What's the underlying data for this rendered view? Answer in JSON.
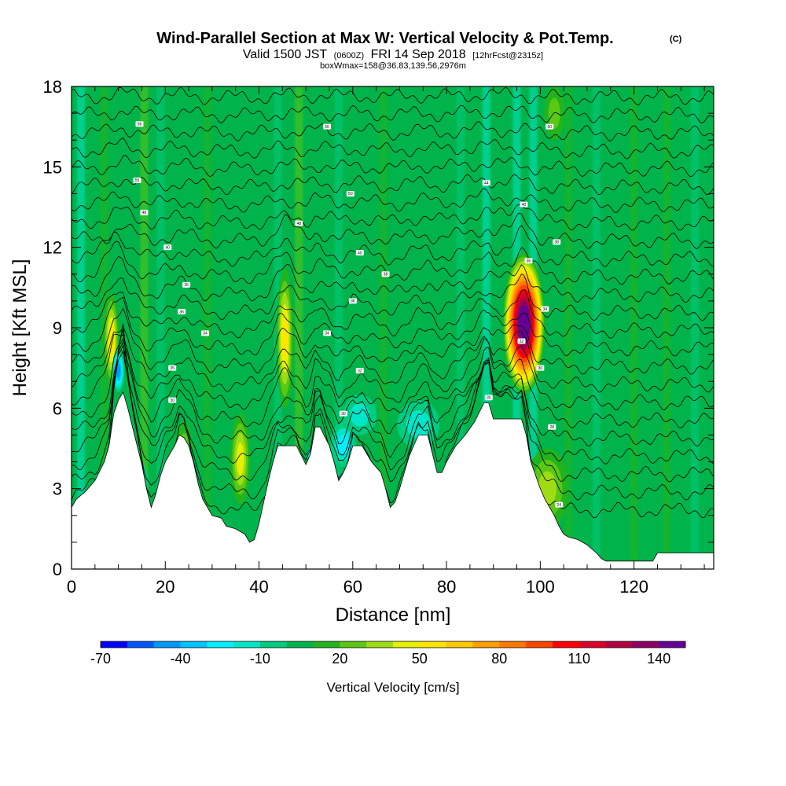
{
  "title": {
    "main": "Wind-Parallel Section at Max W: Vertical Velocity & Pot.Temp.",
    "copyright": "(C)",
    "valid_prefix": "Valid 1500 JST",
    "valid_utc": "(0600Z)",
    "valid_date": "FRI 14 Sep 2018",
    "forecast": "[12hrFcst@2315z]",
    "box_info": "boxWmax=158@36.83,139.56,2976m"
  },
  "chart_data": {
    "type": "heatmap",
    "xlabel": "Distance [nm]",
    "ylabel": "Height [Kft MSL]",
    "xlim": [
      0,
      137
    ],
    "ylim": [
      0,
      18
    ],
    "x_ticks": [
      0,
      20,
      40,
      60,
      80,
      100,
      120
    ],
    "x_tick_labels": [
      "0",
      "20",
      "40",
      "60",
      "80",
      "100",
      "120"
    ],
    "y_ticks": [
      0,
      3,
      6,
      9,
      12,
      15,
      18
    ],
    "y_tick_labels": [
      "0",
      "3",
      "6",
      "9",
      "12",
      "15",
      "18"
    ],
    "background_value": 5,
    "terrain": {
      "x": [
        0,
        1,
        3,
        5,
        7,
        8,
        9,
        10,
        11,
        12,
        13,
        14,
        15,
        16,
        17,
        18,
        19,
        20,
        21,
        22,
        23,
        24,
        25,
        26,
        27,
        28,
        30,
        32,
        33,
        35,
        37,
        38,
        39,
        40,
        41,
        42,
        43,
        44,
        46,
        48,
        50,
        51,
        52,
        53,
        55,
        56,
        57,
        58,
        59,
        60,
        62,
        64,
        66,
        67,
        68,
        69,
        70,
        71,
        72,
        73,
        74,
        76,
        78,
        79,
        80,
        82,
        84,
        86,
        88,
        89,
        90,
        91,
        93,
        96,
        97,
        98,
        100,
        101,
        102,
        103,
        104,
        105,
        106,
        108,
        110,
        112,
        113,
        114,
        116,
        118,
        120,
        122,
        124,
        125,
        128,
        132,
        137
      ],
      "height_kft": [
        2.3,
        2.6,
        2.9,
        3.3,
        4.0,
        4.6,
        5.8,
        6.3,
        6.6,
        6.0,
        5.3,
        4.6,
        3.9,
        3.0,
        2.3,
        2.8,
        3.5,
        4.0,
        4.3,
        4.6,
        5.0,
        4.9,
        4.6,
        4.0,
        3.2,
        2.6,
        2.0,
        1.9,
        1.6,
        1.5,
        1.3,
        1.0,
        1.1,
        1.7,
        2.5,
        3.3,
        4.0,
        4.6,
        4.6,
        4.6,
        3.9,
        4.3,
        5.3,
        5.3,
        4.6,
        4.0,
        3.3,
        3.6,
        4.0,
        4.6,
        4.6,
        4.0,
        3.6,
        3.0,
        2.3,
        2.5,
        3.0,
        3.6,
        4.2,
        4.6,
        5.0,
        5.0,
        3.6,
        3.6,
        4.0,
        4.6,
        5.0,
        5.5,
        6.2,
        6.2,
        5.6,
        5.6,
        5.6,
        5.6,
        5.0,
        4.0,
        3.0,
        2.6,
        2.3,
        2.0,
        1.6,
        1.3,
        1.2,
        1.1,
        0.9,
        0.6,
        0.4,
        0.3,
        0.3,
        0.3,
        0.3,
        0.3,
        0.3,
        0.6,
        0.6,
        0.6,
        0.6
      ]
    },
    "updrafts": [
      {
        "x": 8.5,
        "y_low": 6.8,
        "y_high": 10.3,
        "peak_cm_s": 55,
        "width_nm": 0.9
      },
      {
        "x": 45.5,
        "y_low": 6.0,
        "y_high": 11.2,
        "peak_cm_s": 60,
        "width_nm": 1.0
      },
      {
        "x": 96.5,
        "y_low": 6.5,
        "y_high": 11.8,
        "peak_cm_s": 158,
        "width_nm": 2.5
      },
      {
        "x": 36.0,
        "y_low": 2.4,
        "y_high": 5.8,
        "peak_cm_s": 45,
        "width_nm": 1.2
      },
      {
        "x": 24.0,
        "y_low": 3.5,
        "y_high": 5.5,
        "peak_cm_s": 30,
        "width_nm": 1.0
      },
      {
        "x": 101.5,
        "y_low": 1.5,
        "y_high": 4.5,
        "peak_cm_s": 35,
        "width_nm": 2.5
      },
      {
        "x": 103.0,
        "y_low": 16.0,
        "y_high": 18.0,
        "peak_cm_s": 25,
        "width_nm": 1.2
      }
    ],
    "downdrafts": [
      {
        "x": 10.0,
        "y_low": 6.6,
        "y_high": 8.2,
        "peak_cm_s": -45,
        "width_nm": 0.7
      },
      {
        "x": 51.5,
        "y_low": 3.9,
        "y_high": 4.6,
        "peak_cm_s": -55,
        "width_nm": 0.7
      },
      {
        "x": 58.0,
        "y_low": 3.8,
        "y_high": 5.5,
        "peak_cm_s": -30,
        "width_nm": 1.5
      },
      {
        "x": 74.0,
        "y_low": 4.5,
        "y_high": 6.3,
        "peak_cm_s": -20,
        "width_nm": 2.5
      },
      {
        "x": 61.5,
        "y_low": 5.0,
        "y_high": 6.5,
        "peak_cm_s": -18,
        "width_nm": 2.0
      },
      {
        "x": 14.5,
        "y_low": 2.3,
        "y_high": 4.0,
        "peak_cm_s": -22,
        "width_nm": 1.0
      }
    ],
    "vertical_streaks": [
      {
        "x": 2.0,
        "value": -12
      },
      {
        "x": 7.0,
        "value": 18
      },
      {
        "x": 15.5,
        "value": 22
      },
      {
        "x": 19.0,
        "value": -10
      },
      {
        "x": 29.0,
        "value": 15
      },
      {
        "x": 44.0,
        "value": -10
      },
      {
        "x": 48.5,
        "value": 25
      },
      {
        "x": 57.0,
        "value": -10
      },
      {
        "x": 66.5,
        "value": 15
      },
      {
        "x": 83.0,
        "value": -8
      },
      {
        "x": 88.5,
        "value": -12
      },
      {
        "x": 95.0,
        "value": -15
      },
      {
        "x": 98.5,
        "value": -18
      },
      {
        "x": 106.0,
        "value": 15
      },
      {
        "x": 112.0,
        "value": -8
      },
      {
        "x": 120.0,
        "value": 12
      },
      {
        "x": 127.0,
        "value": 15
      },
      {
        "x": 133.0,
        "value": -8
      }
    ],
    "isentrope_count": 24,
    "isentrope_base_kft": 2.2,
    "isentrope_top_kft": 17.6,
    "isentrope_labels": [
      {
        "x": 14.5,
        "y": 16.6,
        "text": "56"
      },
      {
        "x": 14.0,
        "y": 14.5,
        "text": "55"
      },
      {
        "x": 15.5,
        "y": 13.3,
        "text": "48"
      },
      {
        "x": 20.5,
        "y": 12.0,
        "text": "40"
      },
      {
        "x": 24.5,
        "y": 10.6,
        "text": "35"
      },
      {
        "x": 23.5,
        "y": 9.6,
        "text": "36"
      },
      {
        "x": 28.5,
        "y": 8.8,
        "text": "34"
      },
      {
        "x": 21.5,
        "y": 7.5,
        "text": "35"
      },
      {
        "x": 21.5,
        "y": 6.3,
        "text": "30"
      },
      {
        "x": 54.5,
        "y": 16.5,
        "text": "56"
      },
      {
        "x": 59.5,
        "y": 14.0,
        "text": "50"
      },
      {
        "x": 48.5,
        "y": 12.9,
        "text": "48"
      },
      {
        "x": 61.5,
        "y": 11.8,
        "text": "40"
      },
      {
        "x": 67.0,
        "y": 11.0,
        "text": "38"
      },
      {
        "x": 60.0,
        "y": 10.0,
        "text": "36"
      },
      {
        "x": 54.5,
        "y": 8.8,
        "text": "34"
      },
      {
        "x": 61.5,
        "y": 7.4,
        "text": "32"
      },
      {
        "x": 58.0,
        "y": 5.8,
        "text": "30"
      },
      {
        "x": 88.5,
        "y": 14.4,
        "text": "44"
      },
      {
        "x": 96.5,
        "y": 13.6,
        "text": "40"
      },
      {
        "x": 102.0,
        "y": 16.5,
        "text": "50"
      },
      {
        "x": 103.5,
        "y": 12.2,
        "text": "38"
      },
      {
        "x": 97.5,
        "y": 11.5,
        "text": "36"
      },
      {
        "x": 101.0,
        "y": 9.7,
        "text": "34"
      },
      {
        "x": 96.0,
        "y": 8.5,
        "text": "32"
      },
      {
        "x": 100.0,
        "y": 7.5,
        "text": "30"
      },
      {
        "x": 89.0,
        "y": 6.4,
        "text": "30"
      },
      {
        "x": 102.5,
        "y": 5.3,
        "text": "28"
      },
      {
        "x": 104.0,
        "y": 2.4,
        "text": "24"
      }
    ],
    "colorbar": {
      "colors": [
        "#0000ff",
        "#0055ff",
        "#0099ff",
        "#00c3ff",
        "#00f0ff",
        "#00e6c8",
        "#00cc80",
        "#00b44b",
        "#22b41e",
        "#5ac814",
        "#a0dc14",
        "#e6f000",
        "#ffe600",
        "#ffc800",
        "#ffa000",
        "#ff7800",
        "#ff4600",
        "#ff0000",
        "#dc0028",
        "#b40041",
        "#8c0064",
        "#640096"
      ],
      "bin_low": -70,
      "bin_width": 10,
      "tick_values": [
        -70,
        -40,
        -10,
        20,
        50,
        80,
        110,
        140
      ],
      "tick_labels": [
        "-70",
        "-40",
        "-10",
        "20",
        "50",
        "80",
        "110",
        "140"
      ],
      "title": "Vertical Velocity [cm/s]"
    }
  }
}
